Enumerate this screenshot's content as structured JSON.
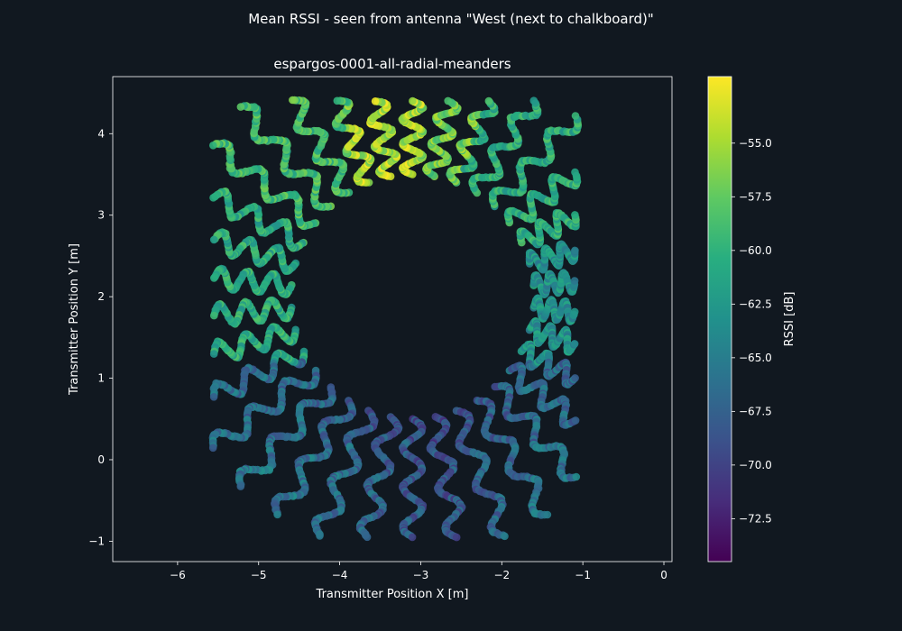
{
  "figure": {
    "suptitle": "Mean RSSI - seen from antenna \"West (next to chalkboard)\""
  },
  "chart_data": {
    "type": "scatter",
    "title": "espargos-0001-all-radial-meanders",
    "xlabel": "Transmitter Position X [m]",
    "ylabel": "Transmitter Position Y [m]",
    "xlim": [
      -6.8,
      0.1
    ],
    "ylim": [
      -1.25,
      4.7
    ],
    "xticks": [
      -6,
      -5,
      -4,
      -3,
      -2,
      -1,
      0
    ],
    "yticks": [
      -1,
      0,
      1,
      2,
      3,
      4
    ],
    "grid": false,
    "colormap": "viridis",
    "colorbar": {
      "label": "RSSI [dB]",
      "range": [
        -74.5,
        -51.9
      ],
      "ticks": [
        -72.5,
        -70.0,
        -67.5,
        -65.0,
        -62.5,
        -60.0,
        -57.5,
        -55.0
      ]
    },
    "pattern": {
      "center": [
        -3.1,
        2.0
      ],
      "inner_radius": 1.45,
      "bounds": {
        "x_min": -5.6,
        "x_max": -1.05,
        "y_min": -1.0,
        "y_max": 4.45
      },
      "meander_count": 34
    },
    "rssi_regions": [
      {
        "region": "north-west (upper left ring)",
        "rssi_range": [
          -58,
          -54
        ]
      },
      {
        "region": "north-east (upper right ring)",
        "rssi_range": [
          -63,
          -57
        ]
      },
      {
        "region": "west (left ring)",
        "rssi_range": [
          -63,
          -59
        ]
      },
      {
        "region": "east (right ring)",
        "rssi_range": [
          -65,
          -60
        ]
      },
      {
        "region": "south (lower meanders)",
        "rssi_range": [
          -73,
          -64
        ]
      }
    ],
    "colors": {
      "background": "#111820",
      "axes_face": "#111820",
      "spine": "#ffffff",
      "text": "#ffffff"
    }
  }
}
